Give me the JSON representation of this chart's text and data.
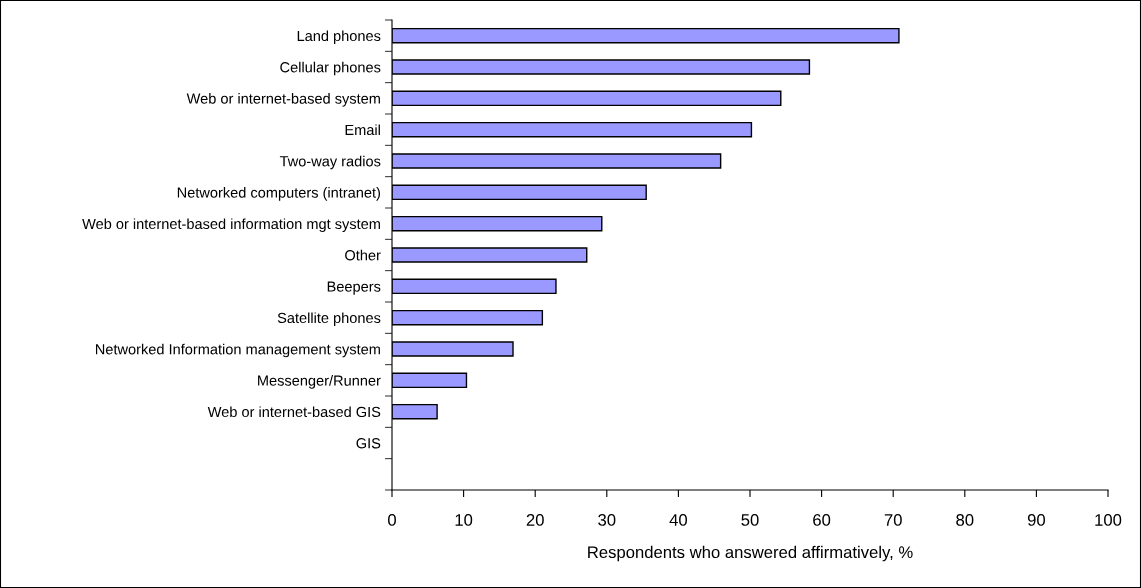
{
  "chart_data": {
    "type": "bar",
    "orientation": "horizontal",
    "xlabel": "Respondents who answered affirmatively, %",
    "categories": [
      "Land phones",
      "Cellular phones",
      "Web or internet-based system",
      "Email",
      "Two-way radios",
      "Networked computers (intranet)",
      "Web or internet-based information mgt system",
      "Other",
      "Beepers",
      "Satellite phones",
      "Networked Information management system",
      "Messenger/Runner",
      "Web or internet-based GIS",
      "GIS"
    ],
    "values": [
      70.8,
      58.3,
      54.3,
      50.2,
      45.9,
      35.5,
      29.3,
      27.2,
      22.9,
      21.0,
      16.9,
      10.4,
      6.3,
      0
    ],
    "color": "#9999ff",
    "xlim": [
      0,
      100
    ],
    "xticks": [
      0,
      10,
      20,
      30,
      40,
      50,
      60,
      70,
      80,
      90,
      100
    ],
    "grid": false,
    "legend": false
  }
}
